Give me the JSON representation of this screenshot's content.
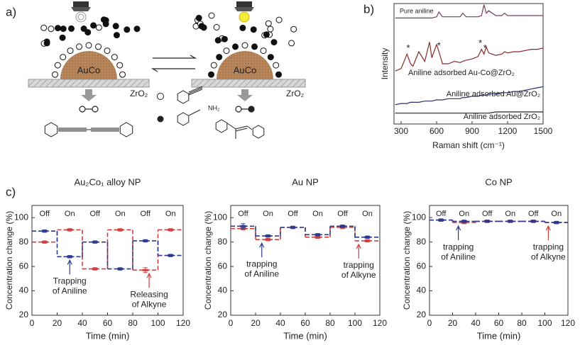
{
  "panels": {
    "a": "a)",
    "b": "b)",
    "c": "c)"
  },
  "diagram": {
    "left": {
      "particle": "AuCo",
      "support": "ZrO₂"
    },
    "right": {
      "particle": "AuCo",
      "support": "ZrO₂"
    },
    "amine_group": "NH₂"
  },
  "chart_data": [
    {
      "type": "line",
      "xlabel": "Raman shift (cm⁻¹)",
      "ylabel": "Intensity",
      "x": [
        250,
        300,
        350,
        380,
        400,
        450,
        500,
        540,
        560,
        600,
        620,
        650,
        700,
        750,
        800,
        820,
        850,
        900,
        950,
        980,
        1000,
        1020,
        1040,
        1100,
        1150,
        1175,
        1200,
        1250,
        1300,
        1350,
        1400,
        1450,
        1500
      ],
      "xlim": [
        240,
        1500
      ],
      "xticks": [
        300,
        600,
        900,
        1200,
        1500
      ],
      "ylim": [
        0,
        100
      ],
      "series": [
        {
          "name": "Pure aniline",
          "color": "#7a3b5e",
          "values": [
            88,
            88,
            88,
            88,
            88,
            88,
            88,
            88,
            88,
            89,
            93,
            89,
            89,
            89,
            89,
            92,
            89,
            89,
            89,
            90,
            99,
            92,
            94,
            90,
            90,
            92,
            90,
            90,
            90,
            90,
            90,
            90,
            90
          ]
        },
        {
          "name": "Aniline adsorbed Au-Co@ZrO₂",
          "color": "#8b2a2a",
          "values": [
            44,
            46,
            58,
            50,
            48,
            60,
            52,
            68,
            55,
            66,
            60,
            50,
            50,
            52,
            51,
            52,
            53,
            54,
            56,
            62,
            58,
            64,
            59,
            57,
            58,
            60,
            59,
            60,
            60,
            61,
            62,
            62,
            63
          ]
        },
        {
          "name": "Aniline adsorbed Au@ZrO₂",
          "color": "#2a2f6b",
          "values": [
            16,
            17,
            17,
            18,
            18,
            18,
            19,
            19,
            19,
            20,
            20,
            20,
            21,
            21,
            21,
            22,
            22,
            23,
            23,
            24,
            24,
            24,
            25,
            25,
            26,
            26,
            26,
            27,
            27,
            28,
            29,
            30,
            31
          ]
        },
        {
          "name": "Aniline adsorbed ZrO₂",
          "color": "#222222",
          "values": [
            9,
            9,
            9,
            9,
            9,
            9,
            9,
            9,
            9,
            9,
            9,
            9,
            9,
            9,
            9,
            9,
            9,
            9,
            9,
            9,
            9,
            9,
            9,
            10,
            10,
            10,
            10,
            10,
            10,
            10,
            10,
            10,
            10
          ]
        }
      ],
      "annotations": [
        {
          "text": "*",
          "x": 360
        },
        {
          "text": "*",
          "x": 620
        },
        {
          "text": "*",
          "x": 970
        },
        {
          "text": "*",
          "x": 1010
        }
      ]
    },
    {
      "type": "step",
      "title": "Au₂Co₁ alloy NP",
      "xlabel": "Time (min)",
      "ylabel": "Concentration change (%)",
      "x": [
        10,
        30,
        50,
        70,
        90,
        110
      ],
      "xlim": [
        0,
        120
      ],
      "xticks": [
        0,
        20,
        40,
        60,
        80,
        100,
        120
      ],
      "ylim": [
        20,
        110
      ],
      "yticks": [
        20,
        40,
        60,
        80,
        100
      ],
      "phases": [
        "Off",
        "On",
        "Off",
        "On",
        "Off",
        "On"
      ],
      "series": [
        {
          "color": "#d04040",
          "values": [
            80,
            90,
            58,
            90,
            57,
            90
          ],
          "errors": [
            1,
            1,
            1,
            1,
            2,
            1
          ]
        },
        {
          "color": "#2e3a8c",
          "values": [
            89,
            68,
            80,
            58,
            81,
            69
          ],
          "errors": [
            1,
            1,
            1,
            1,
            1,
            1
          ]
        }
      ],
      "annotations": [
        {
          "lines": [
            "Trapping",
            "of Aniline"
          ],
          "x": 30,
          "color": "#2e3a8c"
        },
        {
          "lines": [
            "Releasing",
            "of Alkyne"
          ],
          "x": 93,
          "color": "#d04040"
        }
      ]
    },
    {
      "type": "step",
      "title": "Au NP",
      "xlabel": "Time (min)",
      "ylabel": "Concentration change (%)",
      "x": [
        10,
        30,
        50,
        70,
        90,
        110
      ],
      "xlim": [
        0,
        120
      ],
      "xticks": [
        0,
        20,
        40,
        60,
        80,
        100,
        120
      ],
      "ylim": [
        20,
        110
      ],
      "yticks": [
        20,
        40,
        60,
        80,
        100
      ],
      "phases": [
        "Off",
        "On",
        "Off",
        "On",
        "Off",
        "On"
      ],
      "series": [
        {
          "color": "#d04040",
          "values": [
            91,
            82,
            92,
            84,
            92,
            81
          ],
          "errors": [
            1,
            1,
            1,
            1,
            1,
            1
          ]
        },
        {
          "color": "#2e3a8c",
          "values": [
            93,
            85,
            92,
            86,
            93,
            84
          ],
          "errors": [
            2,
            1,
            1,
            1,
            1,
            1
          ]
        }
      ],
      "annotations": [
        {
          "lines": [
            "trapping",
            "of Aniline"
          ],
          "x": 25,
          "color": "#2e3a8c"
        },
        {
          "lines": [
            "trapping",
            "of Alkyne"
          ],
          "x": 103,
          "color": "#d04040"
        }
      ]
    },
    {
      "type": "step",
      "title": "Co NP",
      "xlabel": "Time (min)",
      "ylabel": "Concentration change (%)",
      "x": [
        10,
        30,
        50,
        70,
        90,
        110
      ],
      "xlim": [
        0,
        120
      ],
      "xticks": [
        0,
        20,
        40,
        60,
        80,
        100,
        120
      ],
      "ylim": [
        20,
        110
      ],
      "yticks": [
        20,
        40,
        60,
        80,
        100
      ],
      "phases": [
        "Off",
        "On",
        "Off",
        "On",
        "Off",
        "On"
      ],
      "series": [
        {
          "color": "#d04040",
          "values": [
            98,
            96,
            97,
            97,
            97,
            96
          ],
          "errors": [
            1,
            1,
            1,
            1,
            1,
            1
          ]
        },
        {
          "color": "#2e3a8c",
          "values": [
            98,
            97,
            97,
            97,
            97,
            96
          ],
          "errors": [
            1,
            1,
            1,
            1,
            1,
            1
          ]
        }
      ],
      "annotations": [
        {
          "lines": [
            "trapping",
            "of Aniline"
          ],
          "x": 25,
          "color": "#2e3a8c"
        },
        {
          "lines": [
            "trapping",
            "of Alkyne"
          ],
          "x": 103,
          "color": "#d04040"
        }
      ]
    }
  ]
}
